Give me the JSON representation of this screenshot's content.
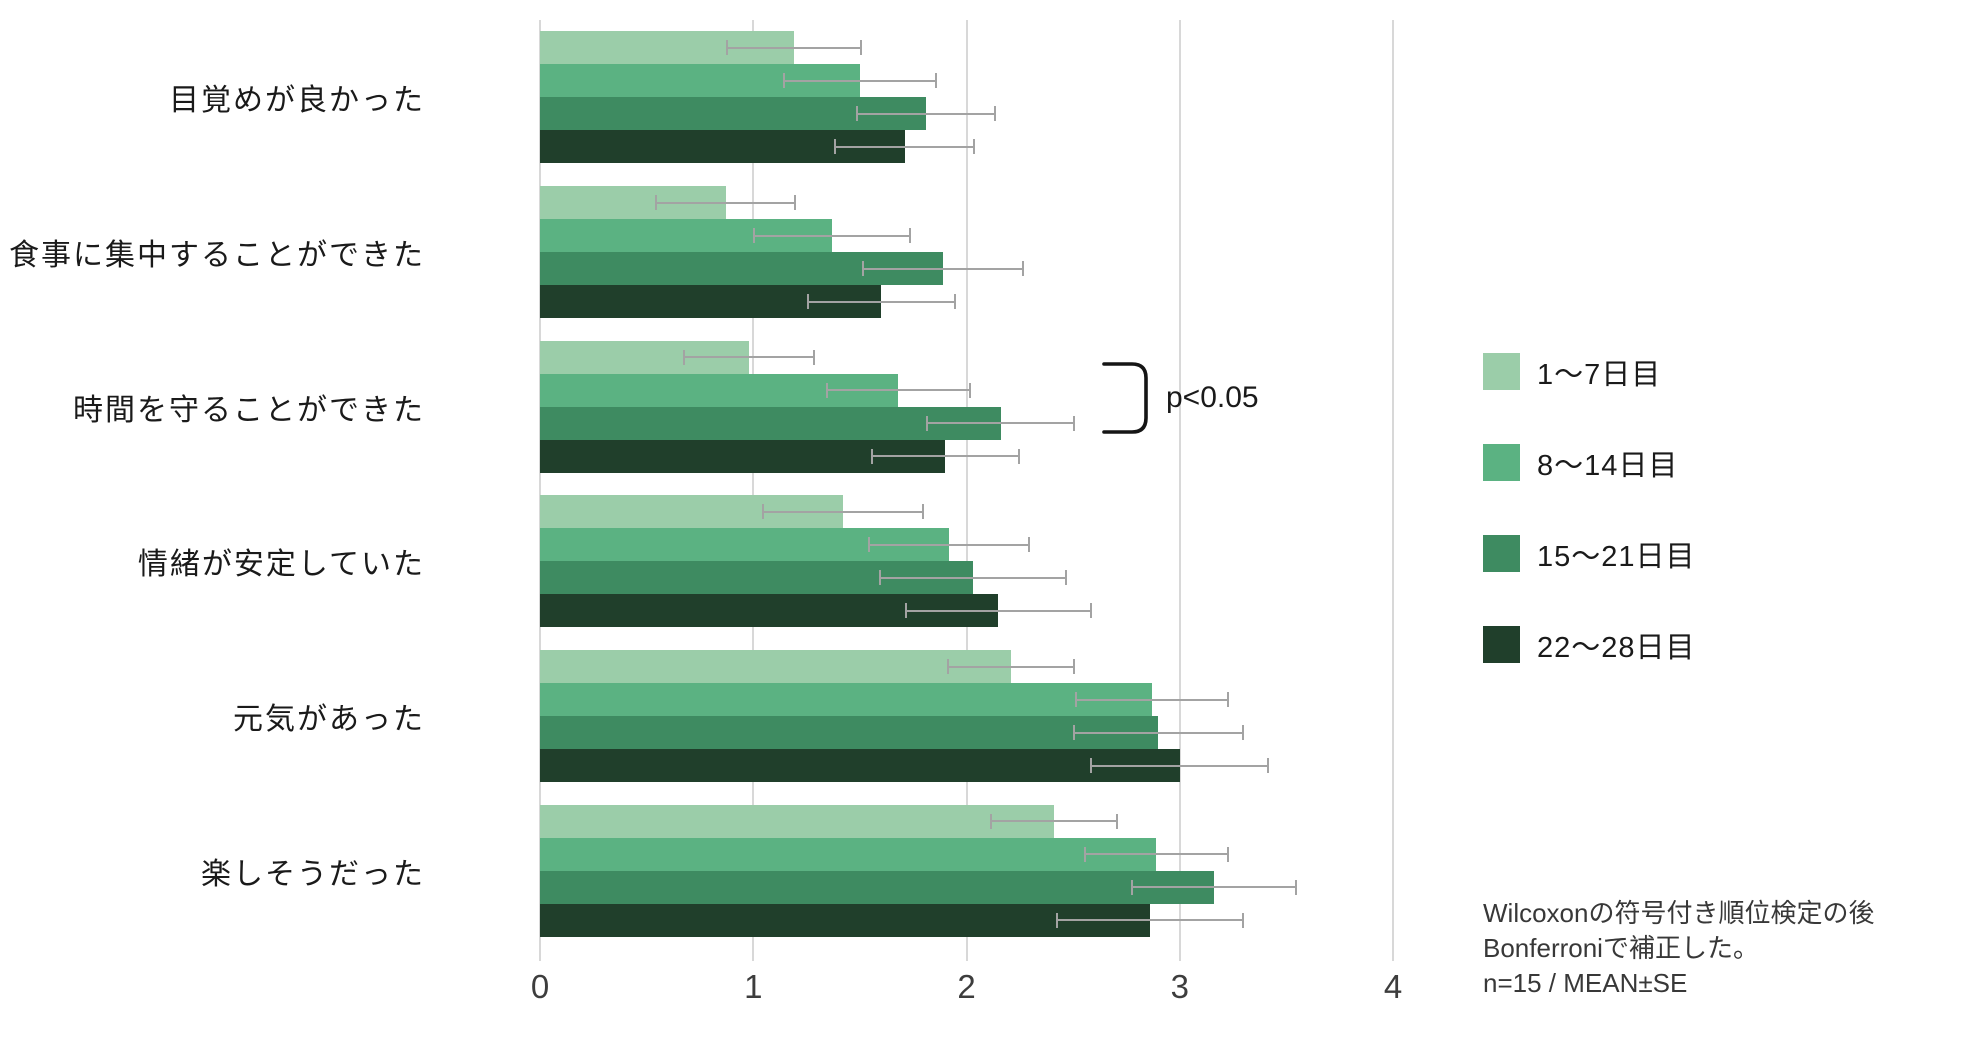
{
  "chart_data": {
    "type": "bar",
    "orientation": "horizontal",
    "title": "",
    "xlabel": "",
    "ylabel": "",
    "xlim": [
      0,
      4
    ],
    "x_ticks": [
      "0",
      "1",
      "2",
      "3",
      "4"
    ],
    "grid": true,
    "legend_position": "right",
    "categories": [
      "目覚めが良かった",
      "食事に集中することができた",
      "時間を守ることができた",
      "情緒が安定していた",
      "元気があった",
      "楽しそうだった"
    ],
    "series": [
      {
        "name": "1〜7日目",
        "color": "#9bcda9",
        "values": [
          1.19,
          0.87,
          0.98,
          1.42,
          2.21,
          2.41
        ],
        "se": [
          0.32,
          0.33,
          0.31,
          0.38,
          0.3,
          0.3
        ]
      },
      {
        "name": "8〜14日目",
        "color": "#5bb282",
        "values": [
          1.5,
          1.37,
          1.68,
          1.92,
          2.87,
          2.89
        ],
        "se": [
          0.36,
          0.37,
          0.34,
          0.38,
          0.36,
          0.34
        ]
      },
      {
        "name": "15〜21日目",
        "color": "#3e8b61",
        "values": [
          1.81,
          1.89,
          2.16,
          2.03,
          2.9,
          3.16
        ],
        "se": [
          0.33,
          0.38,
          0.35,
          0.44,
          0.4,
          0.39
        ]
      },
      {
        "name": "22〜28日目",
        "color": "#203f2b",
        "values": [
          1.71,
          1.6,
          1.9,
          2.15,
          3.0,
          2.86
        ],
        "se": [
          0.33,
          0.35,
          0.35,
          0.44,
          0.42,
          0.44
        ]
      }
    ],
    "error_bar_color": "#a3a3a3",
    "gridline_color": "#d8d8d8"
  },
  "annotation": {
    "text": "p<0.05",
    "category": "時間を守ることができた",
    "between_series": [
      "1〜7日目",
      "15〜21日目"
    ]
  },
  "footnote": {
    "line1": "Wilcoxonの符号付き順位検定の後",
    "line2": "Bonferroniで補正した。",
    "line3": "n=15 / MEAN±SE"
  }
}
